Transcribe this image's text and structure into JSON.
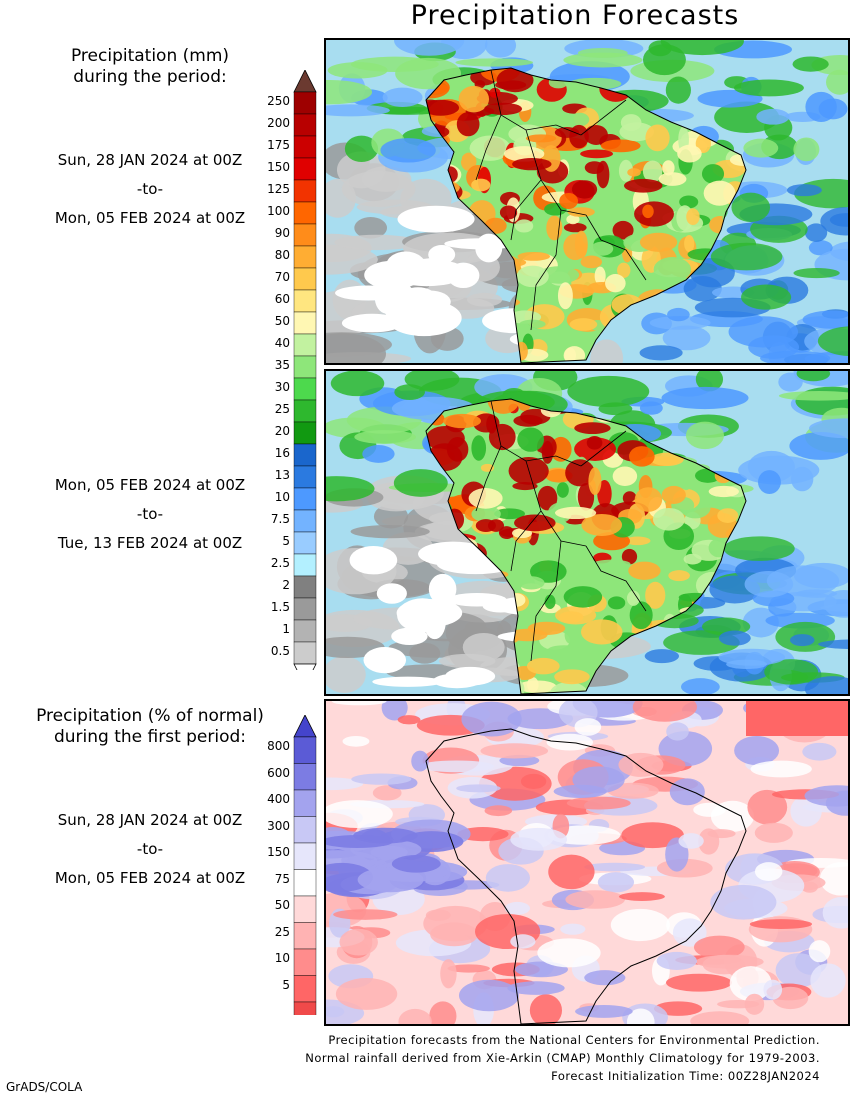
{
  "title": "Precipitation Forecasts",
  "legend_mm": {
    "heading_line1": "Precipitation (mm)",
    "heading_line2": "during the period:",
    "levels": [
      "250",
      "200",
      "175",
      "150",
      "125",
      "100",
      "90",
      "80",
      "70",
      "60",
      "50",
      "40",
      "35",
      "30",
      "25",
      "20",
      "16",
      "13",
      "10",
      "7.5",
      "5",
      "2.5",
      "2",
      "1.5",
      "1",
      "0.5"
    ],
    "colors": [
      "#9e0000",
      "#b80000",
      "#cc0000",
      "#e00000",
      "#f23300",
      "#ff6600",
      "#ff8c1a",
      "#ffad33",
      "#ffc94d",
      "#ffe680",
      "#fff7b3",
      "#c2f2a0",
      "#8ee67a",
      "#4dd94d",
      "#2eb82e",
      "#119911",
      "#1a66cc",
      "#2b7ae0",
      "#4d99ff",
      "#73b3ff",
      "#99ccff",
      "#b3f0ff",
      "#808080",
      "#9a9a9a",
      "#b3b3b3",
      "#cccccc"
    ],
    "top_arrow_color": "#6b3a30",
    "bottom_arrow_color": "#ffffff"
  },
  "period1": {
    "start": "Sun, 28 JAN 2024 at 00Z",
    "to": "-to-",
    "end": "Mon, 05 FEB 2024 at 00Z"
  },
  "period2": {
    "start": "Mon, 05 FEB 2024 at 00Z",
    "to": "-to-",
    "end": "Tue, 13 FEB 2024 at 00Z"
  },
  "legend_pct": {
    "heading_line1": "Precipitation (% of normal)",
    "heading_line2": "during the first period:",
    "levels": [
      "800",
      "600",
      "400",
      "300",
      "150",
      "75",
      "50",
      "25",
      "10",
      "5"
    ],
    "colors": [
      "#5b5bd6",
      "#7c7ce3",
      "#a3a3ee",
      "#c8c8f5",
      "#e6e6fb",
      "#ffffff",
      "#ffd9d9",
      "#ffb3b3",
      "#ff8c8c",
      "#ff6666",
      "#f04a4a"
    ],
    "top_arrow_color": "#4444cc",
    "bottom_arrow_color": "#ee3333"
  },
  "period3": {
    "start": "Sun, 28 JAN 2024 at 00Z",
    "to": "-to-",
    "end": "Mon, 05 FEB 2024 at 00Z"
  },
  "footer": {
    "line1": "Precipitation forecasts from the National Centers for Environmental Prediction.",
    "line2": "Normal rainfall derived from Xie-Arkin (CMAP) Monthly Climatology for 1979-2003.",
    "line3": "Forecast Initialization Time: 00Z28JAN2024"
  },
  "credit": "GrADS/COLA"
}
